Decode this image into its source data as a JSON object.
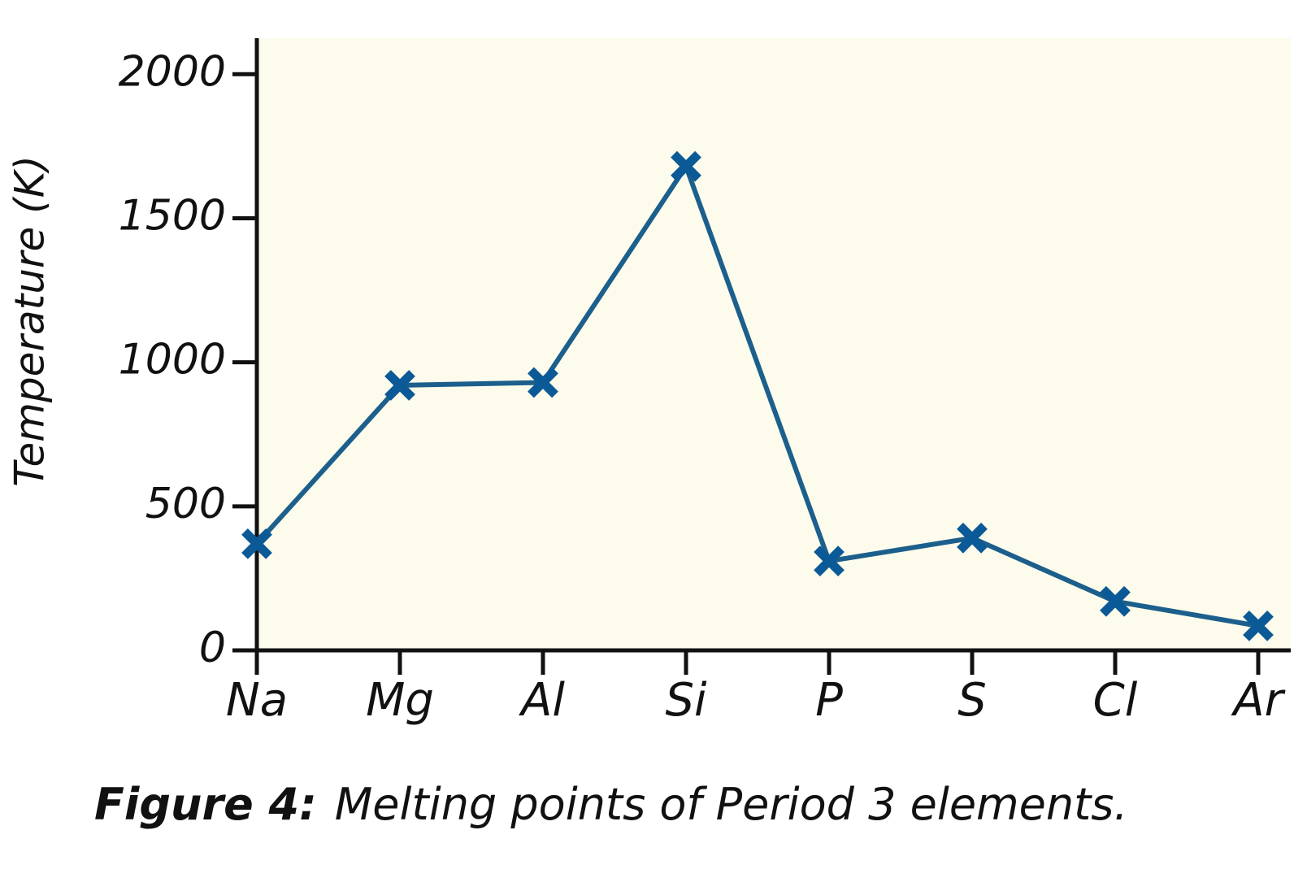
{
  "chart_data": {
    "type": "line",
    "y_label": "Temperature (K)",
    "caption_label": "Figure 4:",
    "caption": "Melting points of Period 3 elements.",
    "categories": [
      "Na",
      "Mg",
      "Al",
      "Si",
      "P",
      "S",
      "Cl",
      "Ar"
    ],
    "series": [
      {
        "name": "Melting point",
        "color": "#1d5f8c",
        "marker_color": "#0b5a97",
        "values": [
          370,
          920,
          930,
          1680,
          310,
          390,
          170,
          85
        ]
      }
    ],
    "ylim": [
      0,
      2125
    ],
    "yticks": [
      0,
      500,
      1000,
      1500,
      2000
    ],
    "background": "#fdfcec"
  }
}
